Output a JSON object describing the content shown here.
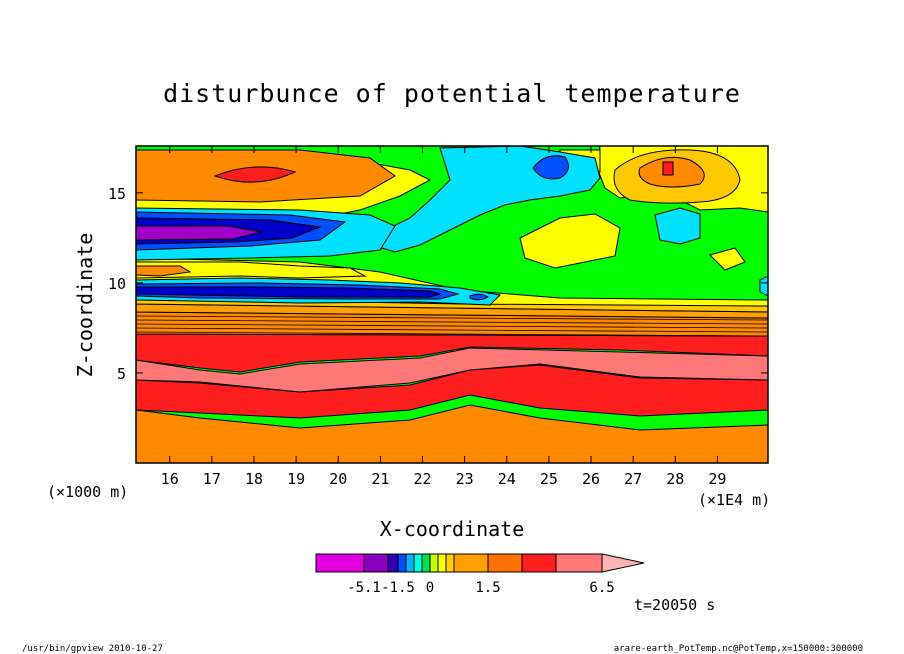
{
  "chart_data": {
    "type": "heatmap",
    "title": "disturbunce of potential temperature",
    "xlabel": "X-coordinate",
    "ylabel": "Z-coordinate",
    "x_unit_label": "(×1E4 m)",
    "y_unit_label": "(×1000 m)",
    "xlim": [
      15.2,
      30.2
    ],
    "ylim": [
      0,
      17.6
    ],
    "x_ticks": [
      "16",
      "17",
      "18",
      "19",
      "20",
      "21",
      "22",
      "23",
      "24",
      "25",
      "26",
      "27",
      "28",
      "29"
    ],
    "y_ticks": [
      "5",
      "10",
      "15"
    ],
    "time_label": "t=20050 s",
    "colorbar_labels": [
      "-5.1",
      "-1.5",
      "0",
      "1.5",
      "6.5"
    ],
    "colorbar_colors": [
      "#e000e0",
      "#8a00c0",
      "#3000b8",
      "#0050ff",
      "#00b4ff",
      "#00ffe0",
      "#00e050",
      "#c8ff00",
      "#ffff00",
      "#ffd000",
      "#ffa000",
      "#ff7000",
      "#ff1e1e",
      "#ff7878"
    ],
    "colorbar_extend_color": "#ffb4b4",
    "field_colors": {
      "dark_orange": "#ff8a00",
      "red": "#ff1e1e",
      "salmon": "#ff7878",
      "yellow_orange": "#ffc800",
      "yellow": "#ffff00",
      "yellow_green": "#c8ff00",
      "green": "#00ff00",
      "cyan": "#00e0ff",
      "blue": "#0050ff",
      "navy": "#0000c8",
      "dark_blue": "#0000a0",
      "purple": "#8a00c8",
      "magenta": "#a000c8"
    }
  },
  "footer": {
    "left": "/usr/bin/gpview   2010-10-27",
    "right": "arare-earth_PotTemp.nc@PotTemp,x=150000:300000"
  }
}
